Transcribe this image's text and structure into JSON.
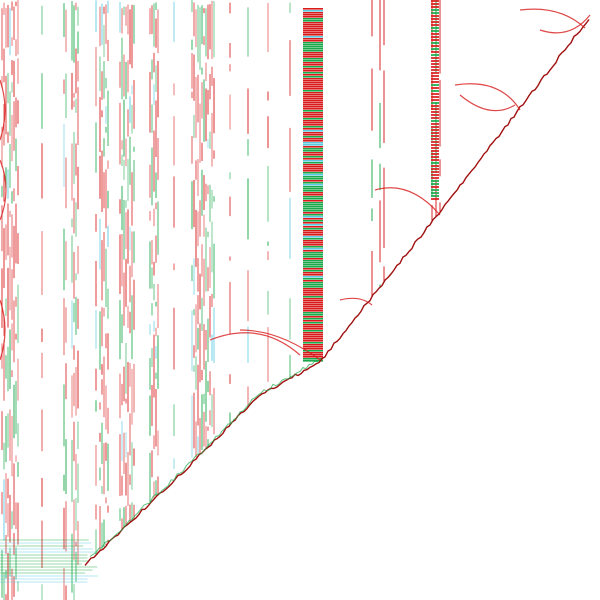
{
  "figure": {
    "background": "#ffffff",
    "palette": {
      "red": "#d81b1b",
      "green": "#1aa84a",
      "cyan": "#59c9e0",
      "dark_red": "#a01010"
    },
    "description_free": true
  }
}
